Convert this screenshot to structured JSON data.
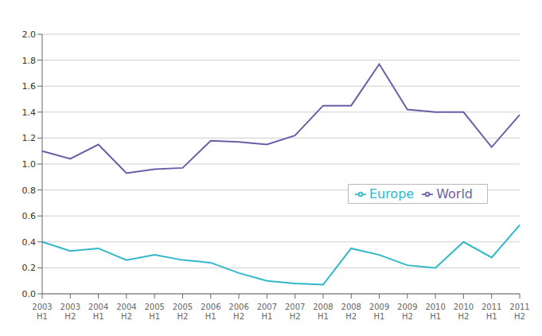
{
  "chart_data": {
    "type": "line",
    "categories": [
      "2003\nH1",
      "2003\nH2",
      "2004\nH1",
      "2004\nH2",
      "2005\nH1",
      "2005\nH2",
      "2006\nH1",
      "2006\nH2",
      "2007\nH1",
      "2007\nH2",
      "2008\nH1",
      "2008\nH2",
      "2009\nH1",
      "2009\nH2",
      "2010\nH1",
      "2010\nH2",
      "2011\nH1",
      "2011\nH2"
    ],
    "series": [
      {
        "name": "World",
        "color": "#6B5EA8",
        "values": [
          1.1,
          1.04,
          1.15,
          0.93,
          0.96,
          0.97,
          1.18,
          1.17,
          1.15,
          1.22,
          1.45,
          1.45,
          1.77,
          1.42,
          1.4,
          1.4,
          1.13,
          1.38
        ]
      },
      {
        "name": "Europe",
        "color": "#30B8C8",
        "values": [
          0.4,
          0.33,
          0.35,
          0.26,
          0.3,
          0.26,
          0.24,
          0.16,
          0.1,
          0.08,
          0.07,
          0.35,
          0.3,
          0.22,
          0.2,
          0.4,
          0.28,
          0.53
        ]
      }
    ],
    "ylim": [
      0.0,
      2.0
    ],
    "yticks": [
      {
        "value": 0,
        "label": "0.0"
      },
      0.2,
      0.4,
      0.6,
      0.8,
      {
        "value": 1,
        "label": "1.0"
      },
      1.2,
      1.4,
      1.6,
      1.8,
      {
        "value": 2,
        "label": "2.0"
      }
    ],
    "grid": true,
    "legend": "right"
  }
}
